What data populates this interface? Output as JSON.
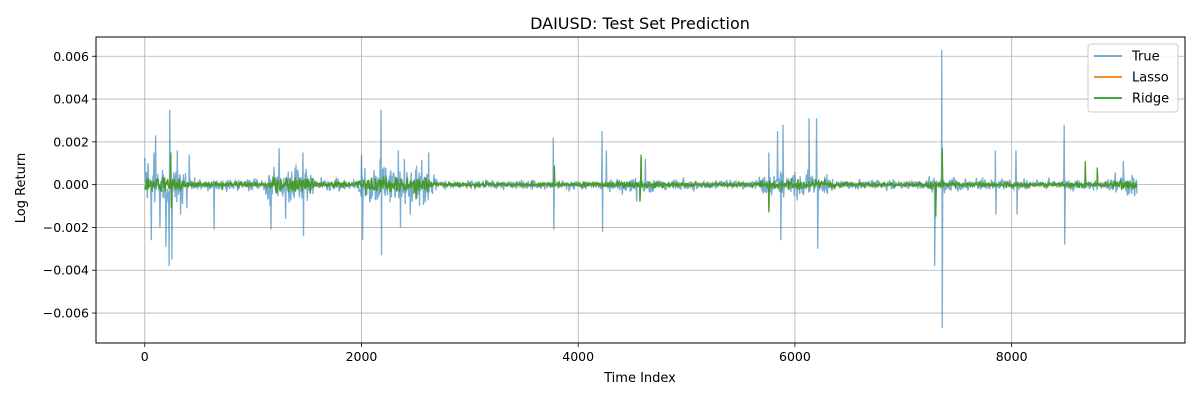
{
  "chart_data": {
    "type": "line",
    "title": "DAIUSD: Test Set Prediction",
    "xlabel": "Time Index",
    "ylabel": "Log Return",
    "xlim": [
      -450,
      9600
    ],
    "ylim": [
      -0.0074,
      0.0069
    ],
    "x_ticks": [
      0,
      2000,
      4000,
      6000,
      8000
    ],
    "x_tick_labels": [
      "0",
      "2000",
      "4000",
      "6000",
      "8000"
    ],
    "y_ticks": [
      -0.006,
      -0.004,
      -0.002,
      0.0,
      0.002,
      0.004,
      0.006
    ],
    "y_tick_labels": [
      "−0.006",
      "−0.004",
      "−0.002",
      "0.000",
      "0.002",
      "0.004",
      "0.006"
    ],
    "grid": true,
    "legend_position": "top-right",
    "n_points": 9160,
    "series": [
      {
        "name": "True",
        "color": "#1f77b4",
        "opacity": 0.6,
        "peaks": [
          {
            "x": 30,
            "y": 0.001
          },
          {
            "x": 60,
            "y": -0.0026
          },
          {
            "x": 85,
            "y": 0.0015
          },
          {
            "x": 100,
            "y": 0.0023
          },
          {
            "x": 140,
            "y": -0.002
          },
          {
            "x": 195,
            "y": -0.0029
          },
          {
            "x": 225,
            "y": -0.0038
          },
          {
            "x": 230,
            "y": 0.0035
          },
          {
            "x": 250,
            "y": -0.0035
          },
          {
            "x": 300,
            "y": 0.0016
          },
          {
            "x": 330,
            "y": -0.0014
          },
          {
            "x": 410,
            "y": 0.0014
          },
          {
            "x": 640,
            "y": 0.002
          },
          {
            "x": 640,
            "y": -0.0021
          },
          {
            "x": 1165,
            "y": 0.0019
          },
          {
            "x": 1165,
            "y": -0.0021
          },
          {
            "x": 1240,
            "y": 0.0017
          },
          {
            "x": 1300,
            "y": -0.0016
          },
          {
            "x": 1460,
            "y": 0.0015
          },
          {
            "x": 1465,
            "y": -0.0024
          },
          {
            "x": 2000,
            "y": 0.0014
          },
          {
            "x": 2010,
            "y": -0.0026
          },
          {
            "x": 2180,
            "y": 0.0035
          },
          {
            "x": 2185,
            "y": -0.0033
          },
          {
            "x": 2340,
            "y": 0.0016
          },
          {
            "x": 2360,
            "y": -0.002
          },
          {
            "x": 2450,
            "y": -0.0014
          },
          {
            "x": 2620,
            "y": 0.0015
          },
          {
            "x": 3770,
            "y": 0.0022
          },
          {
            "x": 3775,
            "y": -0.0021
          },
          {
            "x": 4220,
            "y": 0.0025
          },
          {
            "x": 4225,
            "y": -0.0022
          },
          {
            "x": 4260,
            "y": -0.0023
          },
          {
            "x": 4260,
            "y": 0.0016
          },
          {
            "x": 4540,
            "y": -0.0008
          },
          {
            "x": 4620,
            "y": 0.0012
          },
          {
            "x": 5760,
            "y": 0.0015
          },
          {
            "x": 5840,
            "y": 0.0025
          },
          {
            "x": 5870,
            "y": -0.0026
          },
          {
            "x": 5890,
            "y": 0.0028
          },
          {
            "x": 6130,
            "y": 0.0031
          },
          {
            "x": 6200,
            "y": 0.0031
          },
          {
            "x": 6210,
            "y": -0.003
          },
          {
            "x": 7290,
            "y": 0.004
          },
          {
            "x": 7290,
            "y": -0.0038
          },
          {
            "x": 7355,
            "y": 0.0063
          },
          {
            "x": 7360,
            "y": -0.0067
          },
          {
            "x": 7850,
            "y": 0.0016
          },
          {
            "x": 7855,
            "y": -0.0014
          },
          {
            "x": 8040,
            "y": 0.0016
          },
          {
            "x": 8050,
            "y": -0.0014
          },
          {
            "x": 8485,
            "y": 0.0028
          },
          {
            "x": 8490,
            "y": -0.0028
          },
          {
            "x": 9030,
            "y": 0.0011
          }
        ]
      },
      {
        "name": "Lasso",
        "color": "#ff7f0e",
        "opacity": 0.9
      },
      {
        "name": "Ridge",
        "color": "#2ca02c",
        "opacity": 0.9,
        "peaks": [
          {
            "x": 240,
            "y": 0.0015
          },
          {
            "x": 245,
            "y": -0.0011
          },
          {
            "x": 3780,
            "y": 0.0009
          },
          {
            "x": 4580,
            "y": 0.0014
          },
          {
            "x": 4570,
            "y": -0.0008
          },
          {
            "x": 5760,
            "y": -0.0013
          },
          {
            "x": 7300,
            "y": -0.0015
          },
          {
            "x": 7360,
            "y": 0.0017
          },
          {
            "x": 8680,
            "y": 0.0011
          },
          {
            "x": 8790,
            "y": 0.0008
          }
        ]
      }
    ]
  }
}
